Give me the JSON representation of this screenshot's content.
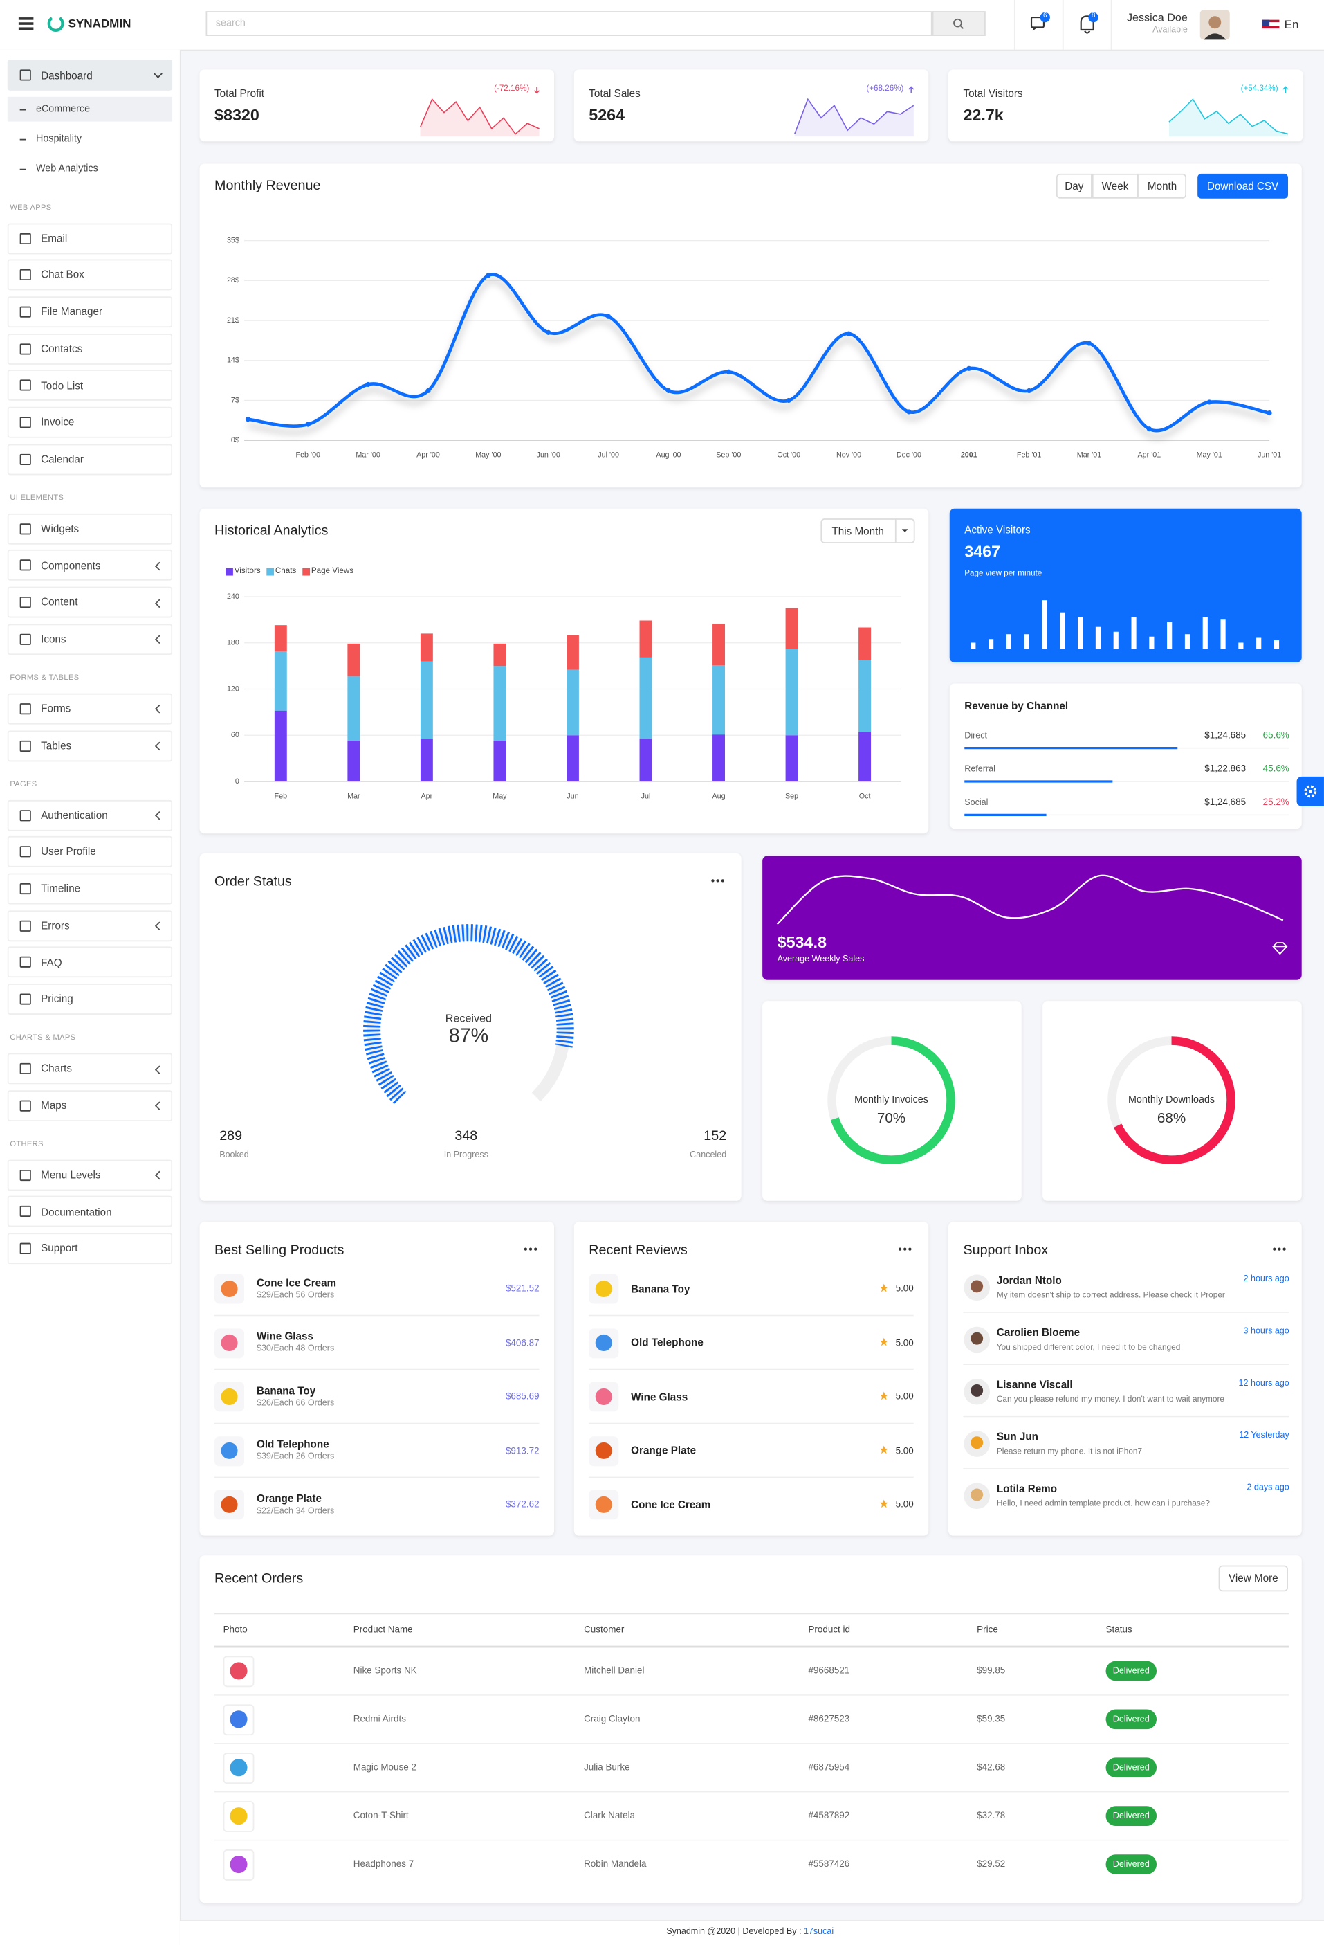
{
  "header": {
    "brand": "SYNADMIN",
    "search_placeholder": "search",
    "chat_badge": "6",
    "bell_badge": "8",
    "user_name": "Jessica Doe",
    "user_status": "Available",
    "language": "En"
  },
  "sidebar": {
    "dashboard": "Dashboard",
    "dashboard_items": [
      "eCommerce",
      "Hospitality",
      "Web Analytics"
    ],
    "sections": [
      {
        "title": "WEB APPS",
        "items": [
          {
            "label": "Email"
          },
          {
            "label": "Chat Box"
          },
          {
            "label": "File Manager"
          },
          {
            "label": "Contatcs"
          },
          {
            "label": "Todo List"
          },
          {
            "label": "Invoice"
          },
          {
            "label": "Calendar"
          }
        ]
      },
      {
        "title": "UI ELEMENTS",
        "items": [
          {
            "label": "Widgets"
          },
          {
            "label": "Components",
            "submenu": true
          },
          {
            "label": "Content",
            "submenu": true
          },
          {
            "label": "Icons",
            "submenu": true
          }
        ]
      },
      {
        "title": "FORMS & TABLES",
        "items": [
          {
            "label": "Forms",
            "submenu": true
          },
          {
            "label": "Tables",
            "submenu": true
          }
        ]
      },
      {
        "title": "PAGES",
        "items": [
          {
            "label": "Authentication",
            "submenu": true
          },
          {
            "label": "User Profile"
          },
          {
            "label": "Timeline"
          },
          {
            "label": "Errors",
            "submenu": true
          },
          {
            "label": "FAQ"
          },
          {
            "label": "Pricing"
          }
        ]
      },
      {
        "title": "CHARTS & MAPS",
        "items": [
          {
            "label": "Charts",
            "submenu": true
          },
          {
            "label": "Maps",
            "submenu": true
          }
        ]
      },
      {
        "title": "OTHERS",
        "items": [
          {
            "label": "Menu Levels",
            "submenu": true
          },
          {
            "label": "Documentation"
          },
          {
            "label": "Support"
          }
        ]
      }
    ]
  },
  "stats": [
    {
      "title": "Total Profit",
      "value": "$8320",
      "change": "(-72.16%)",
      "trend": "down",
      "color": "#e8405a",
      "sparkline": [
        7,
        28,
        18,
        26,
        12,
        22,
        6,
        14,
        2,
        10,
        6
      ]
    },
    {
      "title": "Total Sales",
      "value": "5264",
      "change": "(+68.26%)",
      "trend": "up",
      "color": "#7b61e8",
      "sparkline": [
        0,
        28,
        13,
        23,
        3,
        13,
        8,
        18,
        16,
        23
      ]
    },
    {
      "title": "Total Visitors",
      "value": "22.7k",
      "change": "(+54.34%)",
      "trend": "up",
      "color": "#1cc7e0",
      "sparkline": [
        8,
        15,
        23,
        10,
        15,
        7,
        13,
        5,
        9,
        2,
        0
      ]
    }
  ],
  "monthly_revenue": {
    "type": "line",
    "title": "Monthly Revenue",
    "buttons": [
      "Day",
      "Week",
      "Month"
    ],
    "download": "Download CSV",
    "color": "#0d6efd",
    "categories": [
      null,
      "Feb '00",
      "Mar '00",
      "Apr '00",
      "May '00",
      "Jun '00",
      "Jul '00",
      "Aug '00",
      "Sep '00",
      "Oct '00",
      "Nov '00",
      "Dec '00",
      "2001",
      "Feb '01",
      "Mar '01",
      "Apr '01",
      "May '01",
      "Jun '01"
    ],
    "values": [
      3.7,
      2.8,
      9.8,
      8.7,
      28.9,
      18.9,
      21.7,
      8.7,
      12,
      7,
      18.7,
      5,
      12.6,
      8.7,
      17,
      2,
      6.7,
      4.8
    ],
    "ylim": [
      0,
      35
    ],
    "yticks": [
      {
        "value": 0,
        "label": "0$"
      },
      {
        "value": 7,
        "label": "7$"
      },
      {
        "value": 14,
        "label": "14$"
      },
      {
        "value": 21,
        "label": "21$"
      },
      {
        "value": 28,
        "label": "28$"
      },
      {
        "value": 35,
        "label": "35$"
      }
    ],
    "grid": true
  },
  "historical": {
    "type": "bar",
    "stacked": true,
    "title": "Historical Analytics",
    "dropdown": "This Month",
    "categories": [
      "Feb",
      "Mar",
      "Apr",
      "May",
      "Jun",
      "Jul",
      "Aug",
      "Sep",
      "Oct"
    ],
    "series": [
      {
        "name": "Visitors",
        "color": "#6f3ef5",
        "values": [
          92,
          53,
          55,
          53,
          60,
          56,
          61,
          60,
          64
        ]
      },
      {
        "name": "Chats",
        "color": "#5bbfea",
        "values": [
          77,
          84,
          101,
          97,
          85,
          105,
          90,
          112,
          94
        ]
      },
      {
        "name": "Page Views",
        "color": "#f45454",
        "values": [
          34,
          42,
          36,
          29,
          45,
          48,
          54,
          53,
          42
        ]
      }
    ],
    "ylim": [
      0,
      240
    ],
    "yticks": [
      0,
      60,
      120,
      180,
      240
    ],
    "grid": true
  },
  "active_visitors": {
    "type": "bar",
    "title": "Active Visitors",
    "value": "3467",
    "subtitle": "Page view per minute",
    "background": "#0d6efd",
    "bar_color": "#ffffff",
    "values": [
      5,
      8,
      12,
      12,
      40,
      30,
      26,
      18,
      14,
      26,
      10,
      22,
      12,
      26,
      24,
      5,
      9,
      7
    ],
    "ylim": [
      0,
      45
    ]
  },
  "channels": {
    "title": "Revenue by Channel",
    "bar_color": "#0d6efd",
    "rows": [
      {
        "name": "Direct",
        "amount": "$1,24,685",
        "percent": 65.6,
        "percent_label": "65.6%",
        "color": "#28a745"
      },
      {
        "name": "Referral",
        "amount": "$1,22,863",
        "percent": 45.6,
        "percent_label": "45.6%",
        "color": "#28a745"
      },
      {
        "name": "Social",
        "amount": "$1,24,685",
        "percent": 25.2,
        "percent_label": "25.2%",
        "color": "#e8405a"
      }
    ]
  },
  "order_status": {
    "title": "Order Status",
    "color": "#0d6efd",
    "gauge_label": "Received",
    "gauge_value": 87,
    "gauge_value_label": "87%",
    "stats": [
      {
        "value": 289,
        "label": "Booked"
      },
      {
        "value": 348,
        "label": "In Progress"
      },
      {
        "value": 152,
        "label": "Canceled"
      }
    ]
  },
  "weekly_sales": {
    "value": "$534.8",
    "label": "Average Weekly Sales",
    "background": "#7a00b6",
    "line": [
      5,
      38,
      40,
      28,
      26,
      10,
      17,
      42,
      30,
      32,
      23,
      8
    ]
  },
  "donuts": [
    {
      "label": "Monthly Invoices",
      "value": 70,
      "value_label": "70%",
      "color": "#2bd46b"
    },
    {
      "label": "Monthly Downloads",
      "value": 68,
      "value_label": "68%",
      "color": "#f31c4d"
    }
  ],
  "best_selling": {
    "title": "Best Selling Products",
    "items": [
      {
        "name": "Cone Ice Cream",
        "detail": "$29/Each 56 Orders",
        "price": "$521.52",
        "icon_color": "#f0803c"
      },
      {
        "name": "Wine Glass",
        "detail": "$30/Each 48 Orders",
        "price": "$406.87",
        "icon_color": "#f06a8a"
      },
      {
        "name": "Banana Toy",
        "detail": "$26/Each 66 Orders",
        "price": "$685.69",
        "icon_color": "#f5c518"
      },
      {
        "name": "Old Telephone",
        "detail": "$39/Each 26 Orders",
        "price": "$913.72",
        "icon_color": "#3d8ee8"
      },
      {
        "name": "Orange Plate",
        "detail": "$22/Each 34 Orders",
        "price": "$372.62",
        "icon_color": "#e0561a"
      }
    ]
  },
  "reviews": {
    "title": "Recent Reviews",
    "items": [
      {
        "name": "Banana Toy",
        "rating": "5.00",
        "icon_color": "#f5c518"
      },
      {
        "name": "Old Telephone",
        "rating": "5.00",
        "icon_color": "#3d8ee8"
      },
      {
        "name": "Wine Glass",
        "rating": "5.00",
        "icon_color": "#f06a8a"
      },
      {
        "name": "Orange Plate",
        "rating": "5.00",
        "icon_color": "#e0561a"
      },
      {
        "name": "Cone Ice Cream",
        "rating": "5.00",
        "icon_color": "#f0803c"
      }
    ]
  },
  "inbox": {
    "title": "Support Inbox",
    "items": [
      {
        "name": "Jordan Ntolo",
        "time": "2 hours ago",
        "message": "My item doesn't ship to correct address. Please check it Proper",
        "avatar_color": "#8a5a44"
      },
      {
        "name": "Carolien Bloeme",
        "time": "3 hours ago",
        "message": "You shipped different color, I need it to be changed",
        "avatar_color": "#6b4a3a"
      },
      {
        "name": "Lisanne Viscall",
        "time": "12 hours ago",
        "message": "Can you please refund my money. I don't want to wait anymore",
        "avatar_color": "#4a3a3a"
      },
      {
        "name": "Sun Jun",
        "time": "12 Yesterday",
        "message": "Please return my phone. It is not iPhon7",
        "avatar_color": "#f0a020"
      },
      {
        "name": "Lotila Remo",
        "time": "2 days ago",
        "message": "Hello, I need admin template product. how can i purchase?",
        "avatar_color": "#e0b070"
      }
    ]
  },
  "orders": {
    "title": "Recent Orders",
    "button": "View More",
    "status_color": "#28a745",
    "columns": [
      "Photo",
      "Product Name",
      "Customer",
      "Product id",
      "Price",
      "Status"
    ],
    "rows": [
      {
        "product": "Nike Sports NK",
        "customer": "Mitchell Daniel",
        "id": "#9668521",
        "price": "$99.85",
        "status": "Delivered",
        "icon_color": "#e84a5f"
      },
      {
        "product": "Redmi Airdts",
        "customer": "Craig Clayton",
        "id": "#8627523",
        "price": "$59.35",
        "status": "Delivered",
        "icon_color": "#3d7be8"
      },
      {
        "product": "Magic Mouse 2",
        "customer": "Julia Burke",
        "id": "#6875954",
        "price": "$42.68",
        "status": "Delivered",
        "icon_color": "#3aa0e0"
      },
      {
        "product": "Coton-T-Shirt",
        "customer": "Clark Natela",
        "id": "#4587892",
        "price": "$32.78",
        "status": "Delivered",
        "icon_color": "#f5c518"
      },
      {
        "product": "Headphones 7",
        "customer": "Robin Mandela",
        "id": "#5587426",
        "price": "$29.52",
        "status": "Delivered",
        "icon_color": "#b44be0"
      }
    ]
  },
  "footer": {
    "text": "Synadmin @2020 | Developed By : ",
    "link": "17sucai"
  }
}
